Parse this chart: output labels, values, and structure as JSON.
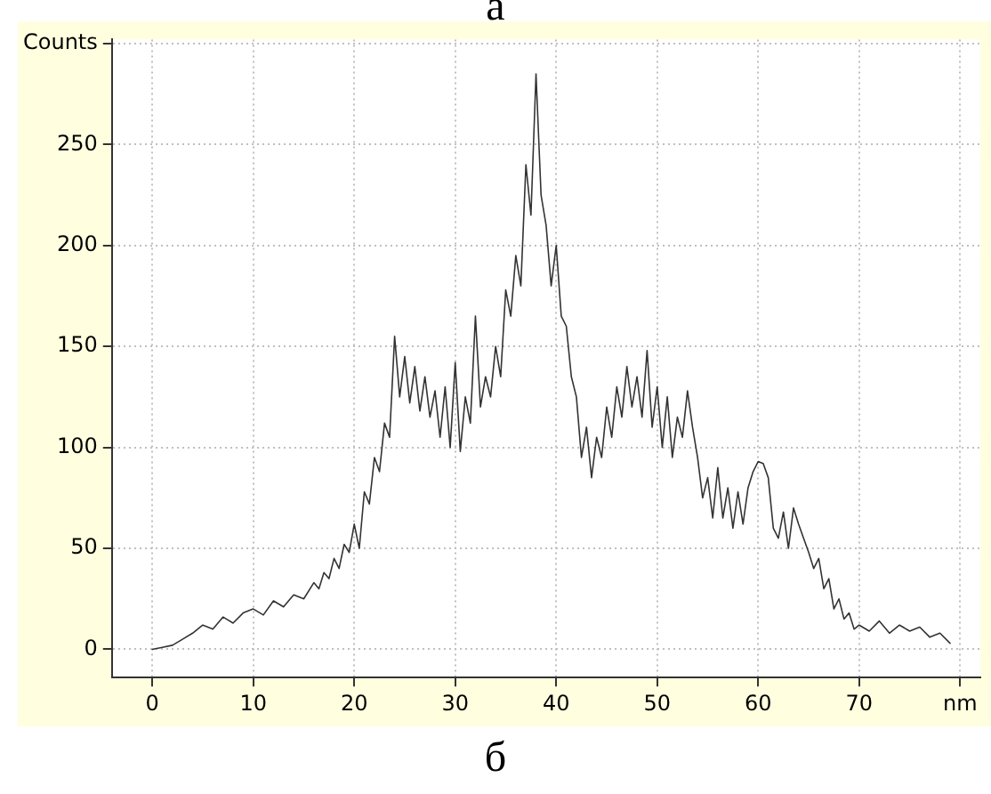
{
  "chart_data": {
    "type": "line",
    "annotations": [
      "а",
      "б"
    ],
    "x": [
      0,
      1,
      2,
      3,
      4,
      5,
      6,
      7,
      8,
      9,
      10,
      11,
      12,
      13,
      14,
      15,
      16,
      16.5,
      17,
      17.5,
      18,
      18.5,
      19,
      19.5,
      20,
      20.5,
      21,
      21.5,
      22,
      22.5,
      23,
      23.5,
      24,
      24.5,
      25,
      25.5,
      26,
      26.5,
      27,
      27.5,
      28,
      28.5,
      29,
      29.5,
      30,
      30.5,
      31,
      31.5,
      32,
      32.5,
      33,
      33.5,
      34,
      34.5,
      35,
      35.5,
      36,
      36.5,
      37,
      37.5,
      38,
      38.5,
      39,
      39.5,
      40,
      40.5,
      41,
      41.5,
      42,
      42.5,
      43,
      43.5,
      44,
      44.5,
      45,
      45.5,
      46,
      46.5,
      47,
      47.5,
      48,
      48.5,
      49,
      49.5,
      50,
      50.5,
      51,
      51.5,
      52,
      52.5,
      53,
      53.5,
      54,
      54.5,
      55,
      55.5,
      56,
      56.5,
      57,
      57.5,
      58,
      58.5,
      59,
      59.5,
      60,
      60.5,
      61,
      61.5,
      62,
      62.5,
      63,
      63.5,
      64,
      64.5,
      65,
      65.5,
      66,
      66.5,
      67,
      67.5,
      68,
      68.5,
      69,
      69.5,
      70,
      71,
      72,
      73,
      74,
      75,
      76,
      77,
      78,
      79
    ],
    "series": [
      {
        "color": "#333333",
        "values": [
          0,
          1,
          2,
          5,
          8,
          12,
          10,
          16,
          13,
          18,
          20,
          17,
          24,
          21,
          27,
          25,
          33,
          30,
          38,
          35,
          45,
          40,
          52,
          48,
          62,
          50,
          78,
          72,
          95,
          88,
          112,
          105,
          155,
          125,
          145,
          122,
          140,
          118,
          135,
          115,
          128,
          105,
          130,
          100,
          142,
          98,
          125,
          112,
          165,
          120,
          135,
          125,
          150,
          135,
          178,
          165,
          195,
          180,
          240,
          215,
          285,
          225,
          210,
          180,
          200,
          165,
          160,
          135,
          125,
          95,
          110,
          85,
          105,
          95,
          120,
          105,
          130,
          115,
          140,
          120,
          135,
          115,
          148,
          110,
          130,
          100,
          125,
          95,
          115,
          105,
          128,
          110,
          95,
          75,
          85,
          65,
          90,
          65,
          80,
          60,
          78,
          62,
          80,
          88,
          93,
          92,
          85,
          60,
          55,
          68,
          50,
          70,
          62,
          55,
          48,
          40,
          45,
          30,
          35,
          20,
          25,
          15,
          18,
          10,
          12,
          9,
          14,
          8,
          12,
          9,
          11,
          6,
          8,
          3
        ]
      }
    ],
    "xlim": [
      -4,
      82
    ],
    "ylim": [
      -14,
      302
    ],
    "xticks": [
      0,
      10,
      20,
      30,
      40,
      50,
      60,
      70,
      {
        "value": 80,
        "label": "nm"
      }
    ],
    "yticks": [
      0,
      50,
      100,
      150,
      200,
      250,
      {
        "value": 300,
        "label": "Counts"
      }
    ],
    "grid": true,
    "legend": false,
    "marker": "none",
    "line_style": "solid"
  }
}
